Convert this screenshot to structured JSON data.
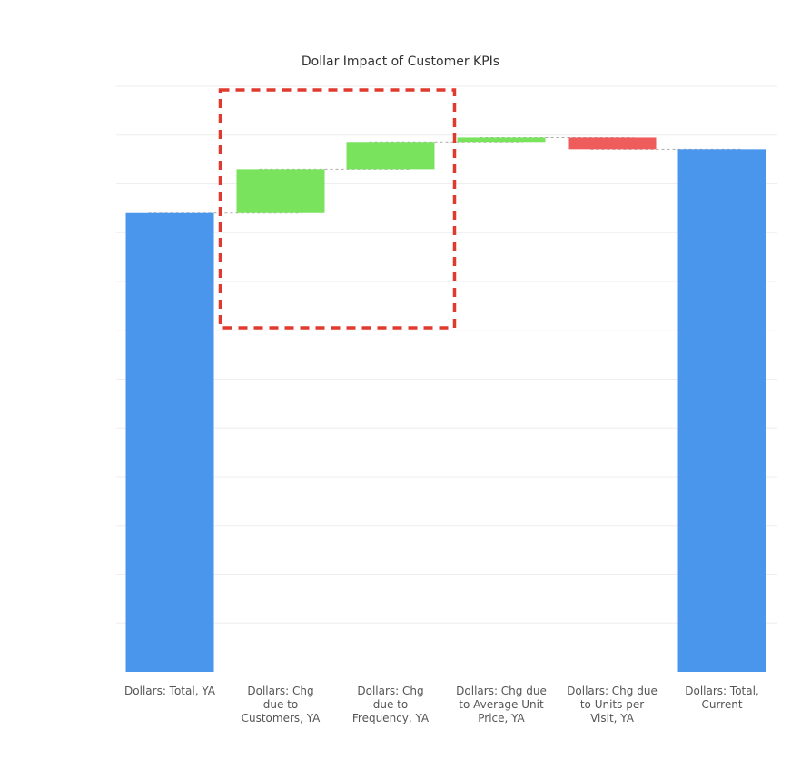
{
  "chart_data": {
    "type": "waterfall",
    "title": "Dollar Impact of Customer KPIs",
    "xlabel": "",
    "ylabel": "",
    "grid": true,
    "legend": "none",
    "ylim": [
      0,
      120
    ],
    "categories": [
      "Dollars: Total, YA",
      "Dollars: Chg due to Customers, YA",
      "Dollars: Chg due to Frequency, YA",
      "Dollars: Chg due to Average Unit Price, YA",
      "Dollars: Chg due to Units per Visit, YA",
      "Dollars: Total, Current"
    ],
    "category_label_lines": [
      [
        "Dollars: Total, YA"
      ],
      [
        "Dollars: Chg",
        "due to",
        "Customers, YA"
      ],
      [
        "Dollars: Chg",
        "due to",
        "Frequency, YA"
      ],
      [
        "Dollars: Chg due",
        "to Average Unit",
        "Price, YA"
      ],
      [
        "Dollars: Chg due",
        "to Units per",
        "Visit, YA"
      ],
      [
        "Dollars: Total,",
        "Current"
      ]
    ],
    "values": [
      94.0,
      9.0,
      5.6,
      0.9,
      -2.4,
      107.1
    ],
    "kinds": [
      "total",
      "delta",
      "delta",
      "delta",
      "delta",
      "total"
    ],
    "colors": {
      "total": "#4a96ec",
      "increase": "#7ae35e",
      "decrease": "#ee5c5c",
      "gridline": "#eeeeee",
      "connector": "#aaaaaa",
      "highlight_box": "#e03a2f"
    },
    "highlight": {
      "categories": [
        1,
        2
      ],
      "style": "dashed"
    }
  }
}
